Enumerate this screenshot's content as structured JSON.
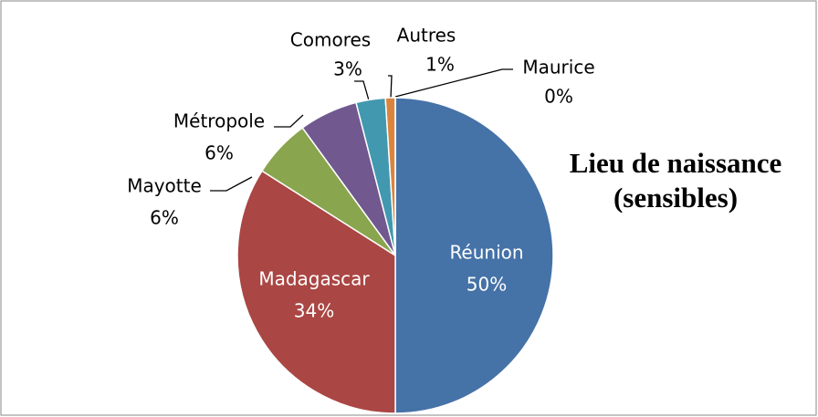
{
  "chart_data": {
    "type": "pie",
    "title": "Lieu de naissance (sensibles)",
    "categories": [
      "Réunion",
      "Madagascar",
      "Mayotte",
      "Métropole",
      "Comores",
      "Autres",
      "Maurice"
    ],
    "values": [
      50,
      34,
      6,
      6,
      3,
      1,
      0
    ],
    "value_labels": [
      "50%",
      "34%",
      "6%",
      "6%",
      "3%",
      "1%",
      "0%"
    ],
    "colors": [
      "#4572a7",
      "#aa4643",
      "#89a54e",
      "#71588f",
      "#4198af",
      "#db843d",
      "#93a9cf"
    ]
  }
}
